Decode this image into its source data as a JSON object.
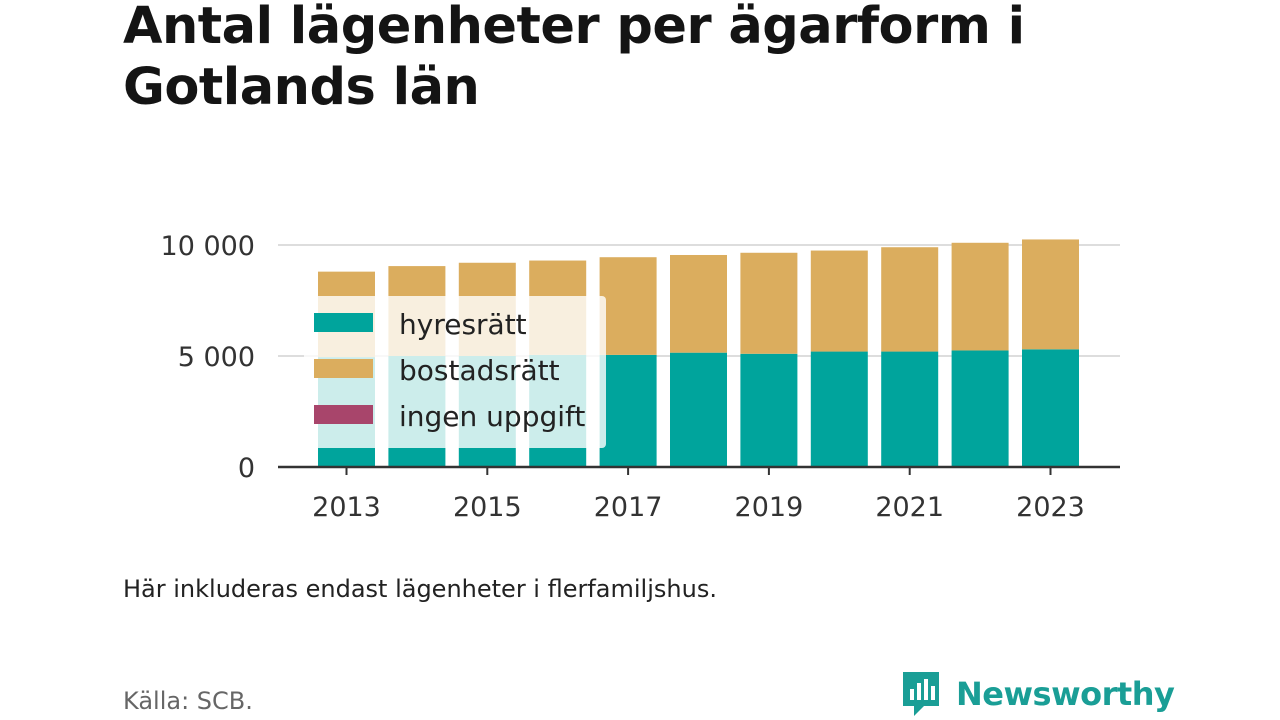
{
  "title": "Antal lägenheter per ägarform i Gotlands län",
  "note": "Här inkluderas endast lägenheter i flerfamiljshus.",
  "source": "Källa: SCB.",
  "brand": {
    "name": "Newsworthy",
    "icon": "newsworthy-logo-icon",
    "color": "#1a9e96"
  },
  "chart_data": {
    "type": "bar",
    "stacked": true,
    "categories": [
      2013,
      2014,
      2015,
      2016,
      2017,
      2018,
      2019,
      2020,
      2021,
      2022,
      2023
    ],
    "x_tick_labels": [
      "2013",
      "2015",
      "2017",
      "2019",
      "2021",
      "2023"
    ],
    "y_ticks": [
      {
        "value": 0,
        "label": "0"
      },
      {
        "value": 5000,
        "label": "5 000"
      },
      {
        "value": 10000,
        "label": "10 000"
      }
    ],
    "ylim": [
      0,
      10000
    ],
    "grid": true,
    "legend_position": "top-left inside",
    "series": [
      {
        "name": "hyresrätt",
        "color": "#00a49c",
        "values": [
          4950,
          5000,
          5000,
          5050,
          5050,
          5150,
          5100,
          5200,
          5200,
          5250,
          5300
        ]
      },
      {
        "name": "bostadsrätt",
        "color": "#dbad5e",
        "values": [
          3850,
          4050,
          4200,
          4250,
          4400,
          4400,
          4550,
          4550,
          4700,
          4850,
          4950
        ]
      },
      {
        "name": "ingen uppgift",
        "color": "#a8456b",
        "values": [
          0,
          0,
          0,
          0,
          0,
          0,
          0,
          0,
          0,
          0,
          0
        ]
      }
    ]
  }
}
